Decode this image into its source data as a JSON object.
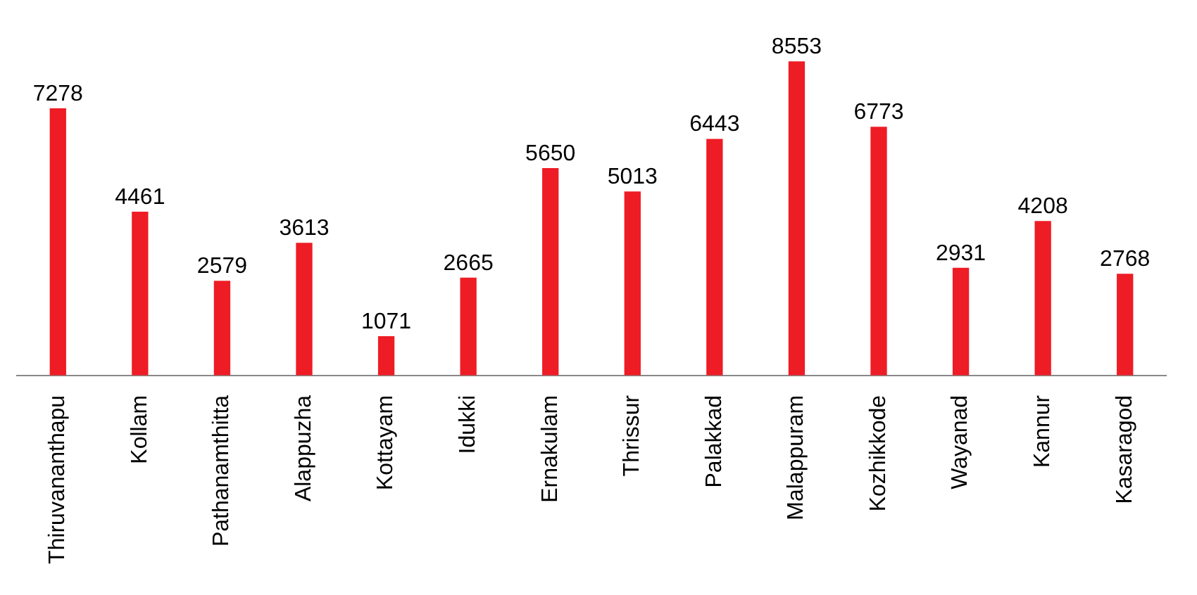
{
  "chart_data": {
    "type": "bar",
    "categories": [
      "Thiruvananthapu",
      "Kollam",
      "Pathanamthitta",
      "Alappuzha",
      "Kottayam",
      "Idukki",
      "Ernakulam",
      "Thrissur",
      "Palakkad",
      "Malappuram",
      "Kozhikkode",
      "Wayanad",
      "Kannur",
      "Kasaragod"
    ],
    "values": [
      7278,
      4461,
      2579,
      3613,
      1071,
      2665,
      5650,
      5013,
      6443,
      8553,
      6773,
      2931,
      4208,
      2768
    ],
    "color": "#ee1c25",
    "data_labels": true,
    "grid": false,
    "legend": false
  }
}
